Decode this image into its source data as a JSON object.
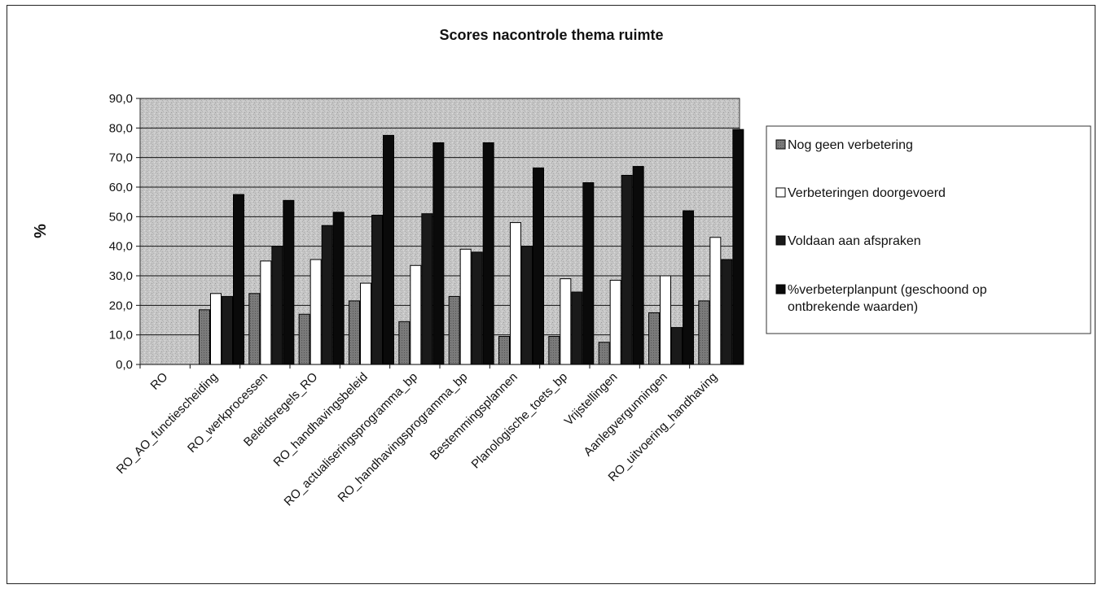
{
  "chart_data": {
    "type": "bar",
    "title": "Scores nacontrole thema ruimte",
    "xlabel": "",
    "ylabel": "%",
    "ylim": [
      0,
      90
    ],
    "yticks": [
      "0,0",
      "10,0",
      "20,0",
      "30,0",
      "40,0",
      "50,0",
      "60,0",
      "70,0",
      "80,0",
      "90,0"
    ],
    "grid": true,
    "legend_position": "right",
    "categories": [
      "RO",
      "RO_AO_functiescheiding",
      "RO_werkprocessen",
      "Beleidsregels_RO",
      "RO_handhavingsbeleid",
      "RO_actualiseringsprogramma_bp",
      "RO_handhavingsprogramma_bp",
      "Bestemmingsplannen",
      "Planologische_toets_bp",
      "Vrijstellingen",
      "Aanlegvergunningen",
      "RO_uitvoering_handhaving"
    ],
    "series": [
      {
        "name": "Nog geen verbetering",
        "color": "#808080",
        "values": [
          0,
          18.5,
          24,
          17,
          21.5,
          14.5,
          23,
          9.5,
          9.5,
          7.5,
          17.5,
          21.5
        ]
      },
      {
        "name": "Verbeteringen doorgevoerd",
        "color": "#ffffff",
        "values": [
          0,
          24,
          35,
          35.5,
          27.5,
          33.5,
          39,
          48,
          29,
          28.5,
          30,
          43
        ]
      },
      {
        "name": "Voldaan aan afspraken",
        "color": "#1a1a1a",
        "values": [
          0,
          23,
          40,
          47,
          50.5,
          51,
          38,
          40,
          24.5,
          64,
          12.5,
          35.5
        ]
      },
      {
        "name": "%verbeterplanpunt (geschoond op ontbrekende waarden)",
        "color": "#0a0a0a",
        "values": [
          0,
          57.5,
          55.5,
          51.5,
          77.5,
          75,
          75,
          66.5,
          61.5,
          67,
          52,
          79.5
        ]
      }
    ]
  }
}
